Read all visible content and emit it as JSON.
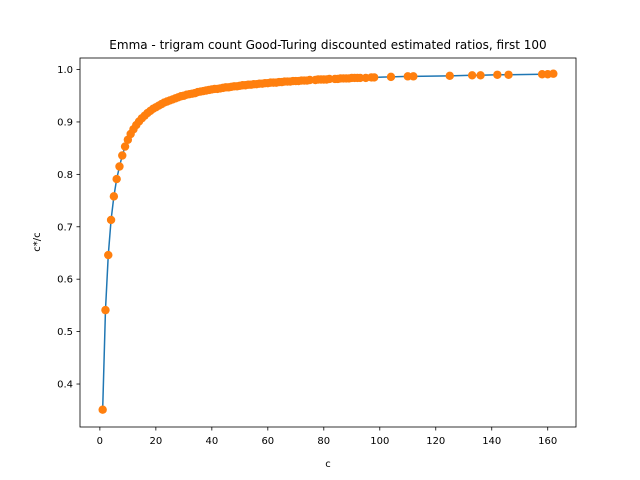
{
  "chart_data": {
    "type": "line",
    "title": "Emma - trigram count Good-Turing discounted estimated ratios, first 100",
    "xlabel": "c",
    "ylabel": "c*/c",
    "xlim": [
      -7.1,
      170.1
    ],
    "ylim": [
      0.318,
      1.022
    ],
    "xticks": [
      0,
      20,
      40,
      60,
      80,
      100,
      120,
      140,
      160
    ],
    "yticks": [
      0.4,
      0.5,
      0.6,
      0.7,
      0.8,
      0.9,
      1.0
    ],
    "ytick_labels": [
      "0.4",
      "0.5",
      "0.6",
      "0.7",
      "0.8",
      "0.9",
      "1.0"
    ],
    "grid": false,
    "legend": "none",
    "series": [
      {
        "line_color": "#1f77b4",
        "marker_color": "#ff7f0e",
        "marker": "circle",
        "x": [
          1,
          2,
          3,
          4,
          5,
          6,
          7,
          8,
          9,
          10,
          11,
          12,
          13,
          14,
          15,
          16,
          17,
          18,
          19,
          20,
          21,
          22,
          23,
          24,
          25,
          26,
          27,
          28,
          29,
          30,
          31,
          32,
          33,
          34,
          35,
          36,
          37,
          38,
          39,
          40,
          41,
          42,
          43,
          44,
          45,
          46,
          47,
          48,
          49,
          50,
          51,
          52,
          53,
          54,
          55,
          56,
          57,
          58,
          59,
          60,
          61,
          62,
          63,
          64,
          65,
          66,
          67,
          68,
          69,
          70,
          71,
          72,
          73,
          74,
          75,
          77,
          78,
          79,
          80,
          81,
          82,
          84,
          85,
          86,
          87,
          88,
          89,
          90,
          91,
          92,
          93,
          95,
          97,
          98,
          104,
          110,
          112,
          125,
          133,
          136,
          142,
          146,
          158,
          160,
          162
        ],
        "y": [
          0.351,
          0.541,
          0.646,
          0.713,
          0.758,
          0.791,
          0.815,
          0.836,
          0.853,
          0.866,
          0.877,
          0.886,
          0.894,
          0.901,
          0.907,
          0.912,
          0.917,
          0.921,
          0.925,
          0.928,
          0.931,
          0.934,
          0.937,
          0.939,
          0.941,
          0.943,
          0.945,
          0.947,
          0.949,
          0.95,
          0.952,
          0.953,
          0.954,
          0.955,
          0.957,
          0.958,
          0.959,
          0.96,
          0.961,
          0.962,
          0.963,
          0.963,
          0.964,
          0.965,
          0.966,
          0.966,
          0.967,
          0.968,
          0.968,
          0.969,
          0.97,
          0.97,
          0.971,
          0.971,
          0.972,
          0.972,
          0.973,
          0.973,
          0.974,
          0.974,
          0.975,
          0.975,
          0.975,
          0.976,
          0.976,
          0.977,
          0.977,
          0.977,
          0.978,
          0.978,
          0.978,
          0.979,
          0.979,
          0.979,
          0.98,
          0.98,
          0.981,
          0.981,
          0.981,
          0.981,
          0.982,
          0.982,
          0.982,
          0.983,
          0.983,
          0.983,
          0.983,
          0.984,
          0.984,
          0.984,
          0.984,
          0.984,
          0.985,
          0.985,
          0.986,
          0.987,
          0.987,
          0.988,
          0.989,
          0.989,
          0.99,
          0.99,
          0.991,
          0.991,
          0.992
        ]
      }
    ]
  }
}
